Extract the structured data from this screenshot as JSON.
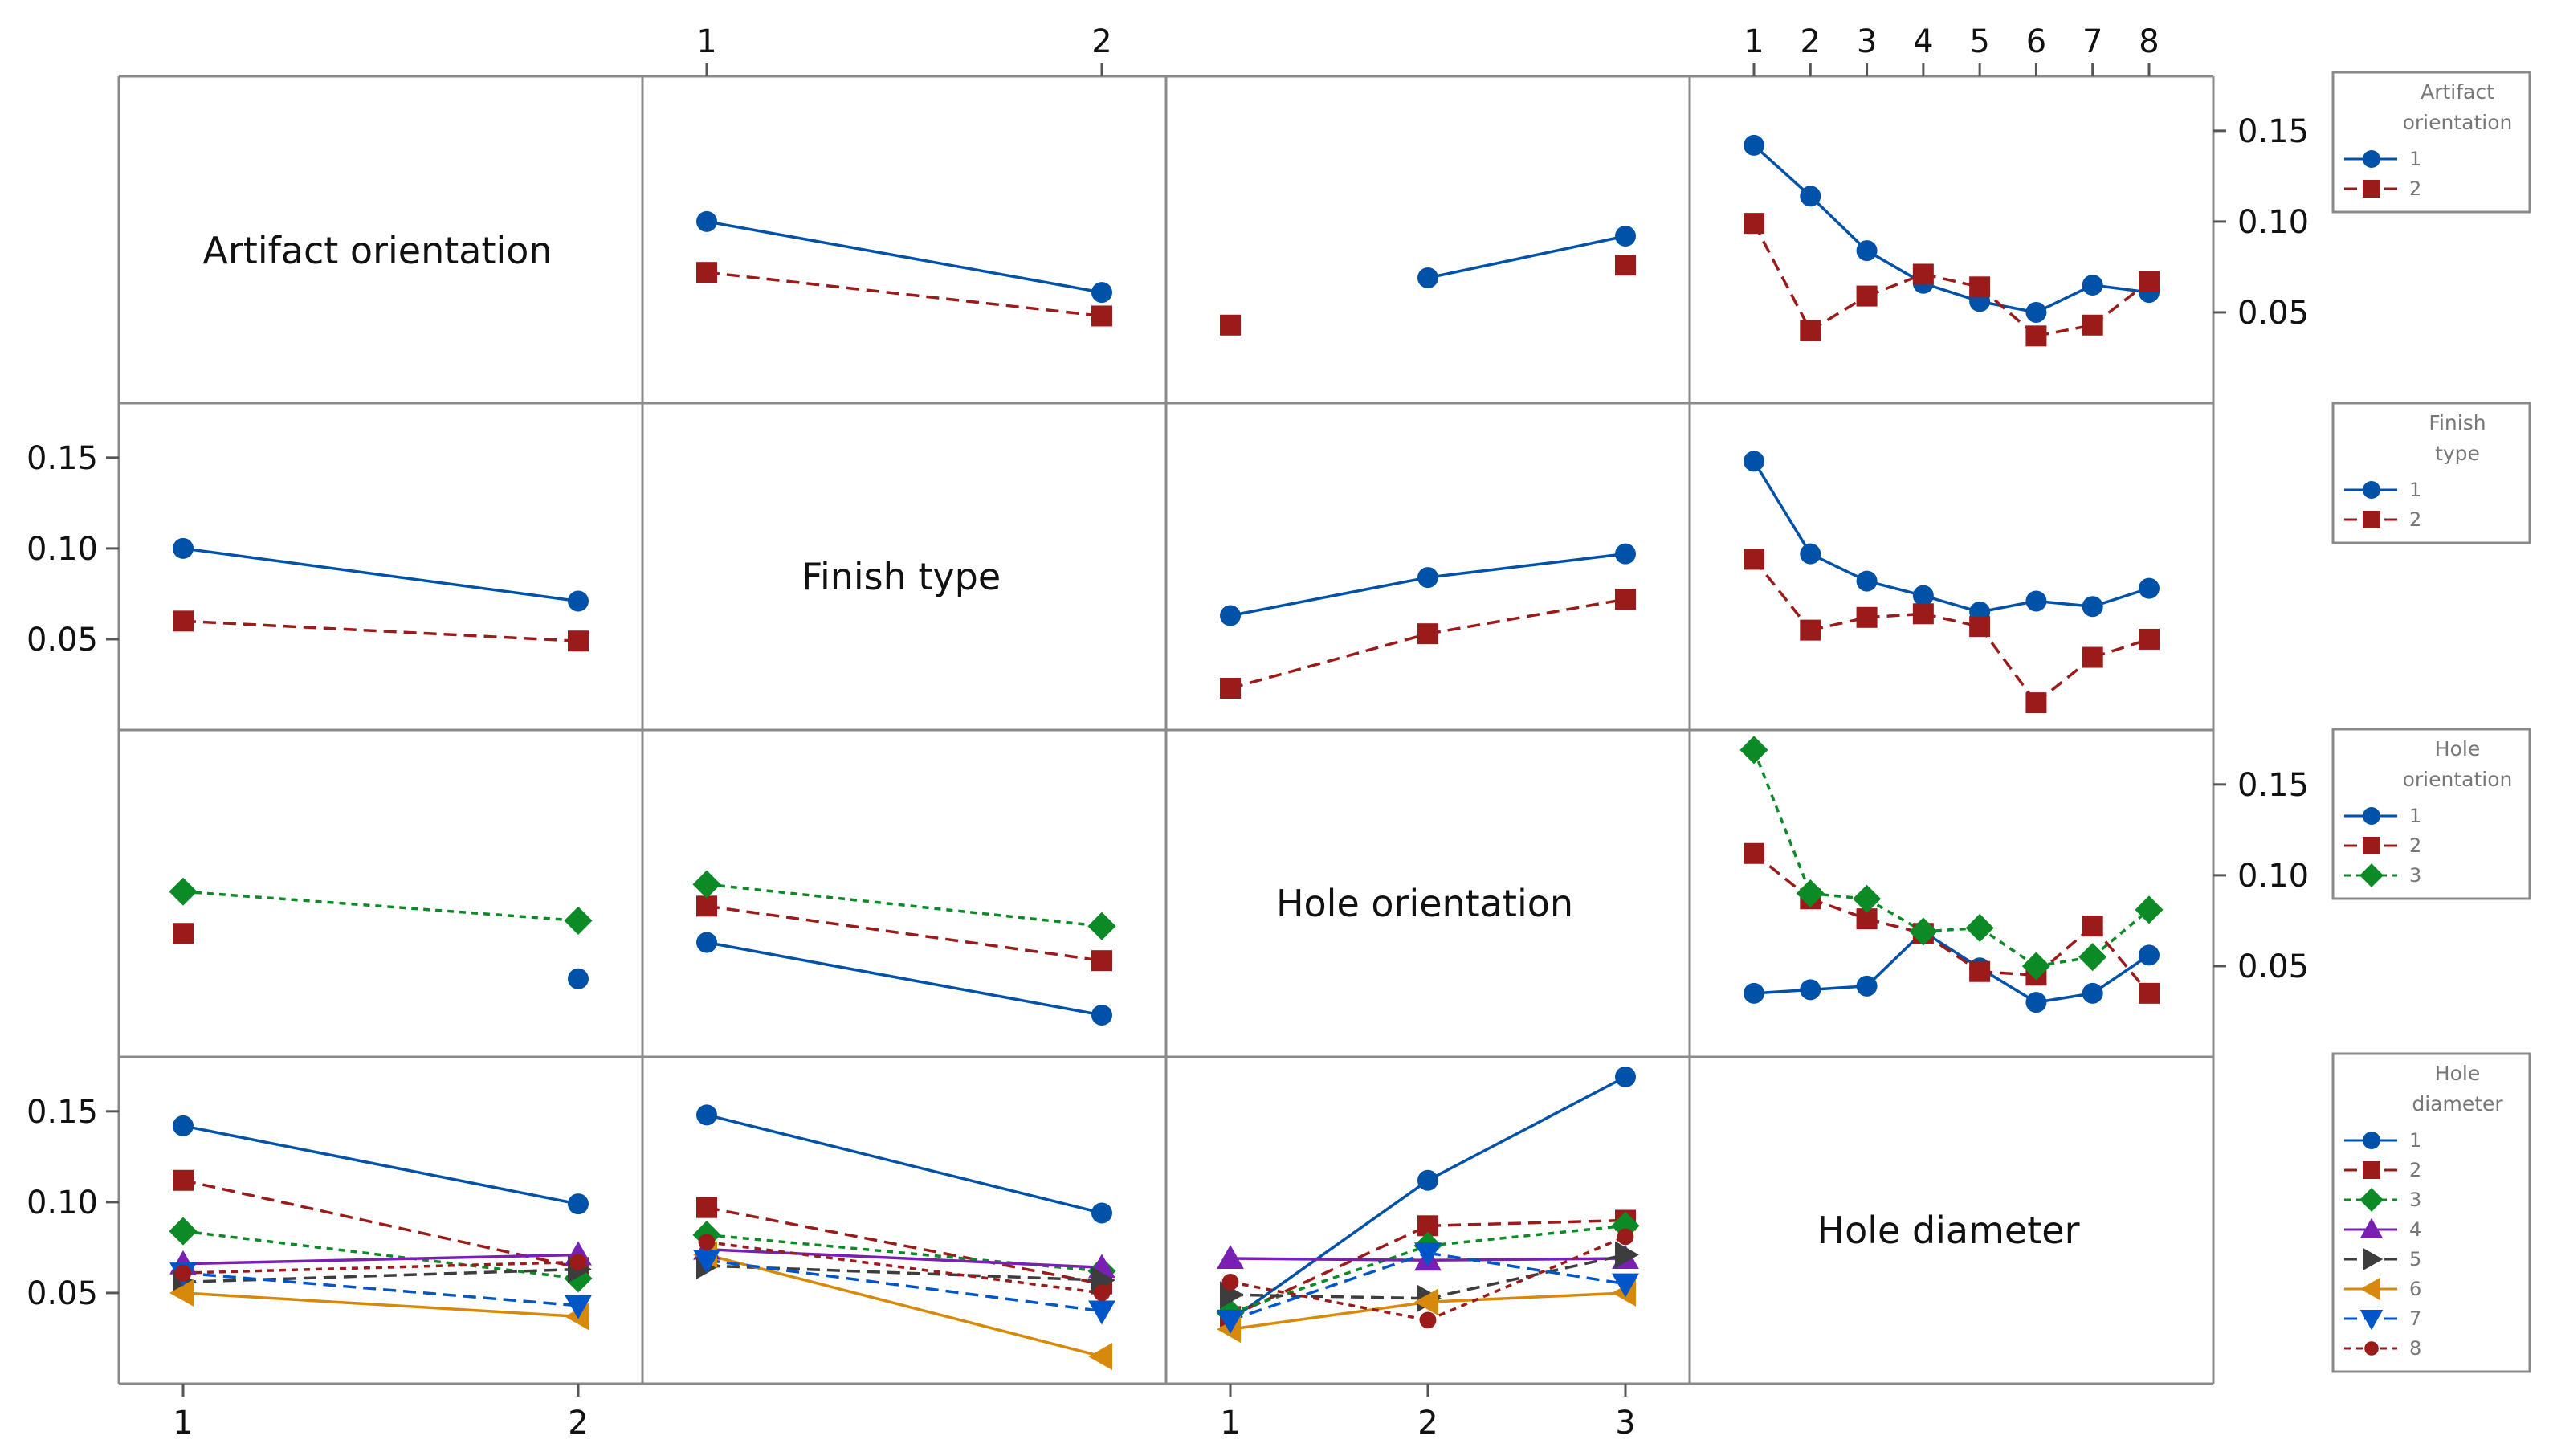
{
  "chart_data": {
    "type": "interaction-plot-matrix",
    "factors": [
      "Artifact orientation",
      "Finish type",
      "Hole orientation",
      "Hole diameter"
    ],
    "levels": {
      "Artifact orientation": [
        "1",
        "2"
      ],
      "Finish type": [
        "1",
        "2"
      ],
      "Hole orientation": [
        "1",
        "2",
        "3"
      ],
      "Hole diameter": [
        "1",
        "2",
        "3",
        "4",
        "5",
        "6",
        "7",
        "8"
      ]
    },
    "top_axis_labels": {
      "col1": [
        "1",
        "2"
      ],
      "col3": [
        "1",
        "2",
        "3",
        "4",
        "5",
        "6",
        "7",
        "8"
      ]
    },
    "bottom_axis_labels": {
      "col0": [
        "1",
        "2"
      ],
      "col2": [
        "1",
        "2",
        "3"
      ]
    },
    "ylim": [
      0.0,
      0.18
    ],
    "yticks": [
      "0.05",
      "0.10",
      "0.15"
    ],
    "legends": [
      {
        "title": [
          "Artifact",
          "orientation"
        ],
        "items": [
          "1",
          "2"
        ]
      },
      {
        "title": [
          "Finish",
          "type"
        ],
        "items": [
          "1",
          "2"
        ]
      },
      {
        "title": [
          "Hole",
          "orientation"
        ],
        "items": [
          "1",
          "2",
          "3"
        ]
      },
      {
        "title": [
          "Hole",
          "diameter"
        ],
        "items": [
          "1",
          "2",
          "3",
          "4",
          "5",
          "6",
          "7",
          "8"
        ]
      }
    ],
    "series_styles": [
      {
        "color": "#0051a8",
        "marker": "circle",
        "dash": "solid"
      },
      {
        "color": "#9b1b1b",
        "marker": "square",
        "dash": "long"
      },
      {
        "color": "#0b8a25",
        "marker": "diamond",
        "dash": "short"
      },
      {
        "color": "#7a1fb4",
        "marker": "triangle-up",
        "dash": "solid"
      },
      {
        "color": "#3d3d3d",
        "marker": "triangle-right",
        "dash": "long"
      },
      {
        "color": "#d6890a",
        "marker": "triangle-left",
        "dash": "solid"
      },
      {
        "color": "#0055c8",
        "marker": "triangle-down",
        "dash": "long"
      },
      {
        "color": "#9b1b1b",
        "marker": "circle-small",
        "dash": "short"
      }
    ],
    "panels": [
      {
        "row": 0,
        "col": 1,
        "trace_factor": "Artifact orientation",
        "x_factor": "Finish type",
        "nx": 2,
        "series": [
          {
            "name": "1",
            "values": [
              0.1,
              0.061
            ]
          },
          {
            "name": "2",
            "values": [
              0.072,
              0.048
            ]
          }
        ]
      },
      {
        "row": 0,
        "col": 2,
        "trace_factor": "Artifact orientation",
        "x_factor": "Hole orientation",
        "nx": 3,
        "series": [
          {
            "name": "1",
            "values": [
              null,
              0.069,
              0.092
            ]
          },
          {
            "name": "2",
            "values": [
              0.043,
              null,
              0.076
            ]
          }
        ]
      },
      {
        "row": 0,
        "col": 3,
        "trace_factor": "Artifact orientation",
        "x_factor": "Hole diameter",
        "nx": 8,
        "series": [
          {
            "name": "1",
            "values": [
              0.142,
              0.114,
              0.084,
              0.066,
              0.056,
              0.05,
              0.065,
              0.061
            ]
          },
          {
            "name": "2",
            "values": [
              0.099,
              0.04,
              0.059,
              0.071,
              0.064,
              0.037,
              0.043,
              0.067
            ]
          }
        ]
      },
      {
        "row": 1,
        "col": 0,
        "trace_factor": "Finish type",
        "x_factor": "Artifact orientation",
        "nx": 2,
        "series": [
          {
            "name": "1",
            "values": [
              0.1,
              0.071
            ]
          },
          {
            "name": "2",
            "values": [
              0.06,
              0.049
            ]
          }
        ]
      },
      {
        "row": 1,
        "col": 2,
        "trace_factor": "Finish type",
        "x_factor": "Hole orientation",
        "nx": 3,
        "series": [
          {
            "name": "1",
            "values": [
              0.063,
              0.084,
              0.097
            ]
          },
          {
            "name": "2",
            "values": [
              0.023,
              0.053,
              0.072
            ]
          }
        ]
      },
      {
        "row": 1,
        "col": 3,
        "trace_factor": "Finish type",
        "x_factor": "Hole diameter",
        "nx": 8,
        "series": [
          {
            "name": "1",
            "values": [
              0.148,
              0.097,
              0.082,
              0.074,
              0.065,
              0.071,
              0.068,
              0.078
            ]
          },
          {
            "name": "2",
            "values": [
              0.094,
              0.055,
              0.062,
              0.064,
              0.057,
              0.015,
              0.04,
              0.05
            ]
          }
        ]
      },
      {
        "row": 2,
        "col": 0,
        "trace_factor": "Hole orientation",
        "x_factor": "Artifact orientation",
        "nx": 2,
        "series": [
          {
            "name": "1",
            "values": [
              null,
              0.043
            ]
          },
          {
            "name": "2",
            "values": [
              0.068,
              null
            ]
          },
          {
            "name": "3",
            "values": [
              0.091,
              0.075
            ]
          }
        ]
      },
      {
        "row": 2,
        "col": 1,
        "trace_factor": "Hole orientation",
        "x_factor": "Finish type",
        "nx": 2,
        "series": [
          {
            "name": "1",
            "values": [
              0.063,
              0.023
            ]
          },
          {
            "name": "2",
            "values": [
              0.083,
              0.053
            ]
          },
          {
            "name": "3",
            "values": [
              0.095,
              0.072
            ]
          }
        ]
      },
      {
        "row": 2,
        "col": 3,
        "trace_factor": "Hole orientation",
        "x_factor": "Hole diameter",
        "nx": 8,
        "series": [
          {
            "name": "1",
            "values": [
              0.035,
              0.037,
              0.039,
              0.069,
              0.049,
              0.03,
              0.035,
              0.056
            ]
          },
          {
            "name": "2",
            "values": [
              0.112,
              0.087,
              0.076,
              0.068,
              0.047,
              0.045,
              0.072,
              0.035
            ]
          },
          {
            "name": "3",
            "values": [
              0.169,
              0.09,
              0.087,
              0.069,
              0.071,
              0.05,
              0.055,
              0.081
            ]
          }
        ]
      },
      {
        "row": 3,
        "col": 0,
        "trace_factor": "Hole diameter",
        "x_factor": "Artifact orientation",
        "nx": 2,
        "series": [
          {
            "name": "1",
            "values": [
              0.142,
              0.099
            ]
          },
          {
            "name": "2",
            "values": [
              0.112,
              0.064
            ]
          },
          {
            "name": "3",
            "values": [
              0.084,
              0.058
            ]
          },
          {
            "name": "4",
            "values": [
              0.066,
              0.071
            ]
          },
          {
            "name": "5",
            "values": [
              0.056,
              0.063
            ]
          },
          {
            "name": "6",
            "values": [
              0.05,
              0.037
            ]
          },
          {
            "name": "7",
            "values": [
              0.061,
              0.043
            ]
          },
          {
            "name": "8",
            "values": [
              0.061,
              0.067
            ]
          }
        ]
      },
      {
        "row": 3,
        "col": 1,
        "trace_factor": "Hole diameter",
        "x_factor": "Finish type",
        "nx": 2,
        "series": [
          {
            "name": "1",
            "values": [
              0.148,
              0.094
            ]
          },
          {
            "name": "2",
            "values": [
              0.097,
              0.055
            ]
          },
          {
            "name": "3",
            "values": [
              0.082,
              0.062
            ]
          },
          {
            "name": "4",
            "values": [
              0.074,
              0.064
            ]
          },
          {
            "name": "5",
            "values": [
              0.065,
              0.057
            ]
          },
          {
            "name": "6",
            "values": [
              0.071,
              0.015
            ]
          },
          {
            "name": "7",
            "values": [
              0.068,
              0.04
            ]
          },
          {
            "name": "8",
            "values": [
              0.078,
              0.05
            ]
          }
        ]
      },
      {
        "row": 3,
        "col": 2,
        "trace_factor": "Hole diameter",
        "x_factor": "Hole orientation",
        "nx": 3,
        "series": [
          {
            "name": "1",
            "values": [
              0.035,
              0.112,
              0.169
            ]
          },
          {
            "name": "2",
            "values": [
              0.037,
              0.087,
              0.09
            ]
          },
          {
            "name": "3",
            "values": [
              0.039,
              0.076,
              0.087
            ]
          },
          {
            "name": "4",
            "values": [
              0.069,
              0.068,
              0.069
            ]
          },
          {
            "name": "5",
            "values": [
              0.049,
              0.047,
              0.071
            ]
          },
          {
            "name": "6",
            "values": [
              0.03,
              0.045,
              0.05
            ]
          },
          {
            "name": "7",
            "values": [
              0.035,
              0.072,
              0.055
            ]
          },
          {
            "name": "8",
            "values": [
              0.056,
              0.035,
              0.081
            ]
          }
        ]
      }
    ]
  }
}
